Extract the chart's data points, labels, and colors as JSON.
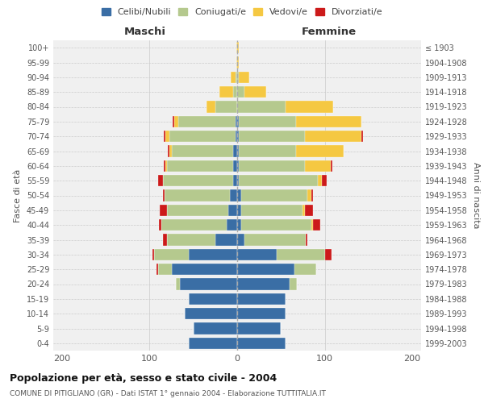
{
  "age_groups": [
    "0-4",
    "5-9",
    "10-14",
    "15-19",
    "20-24",
    "25-29",
    "30-34",
    "35-39",
    "40-44",
    "45-49",
    "50-54",
    "55-59",
    "60-64",
    "65-69",
    "70-74",
    "75-79",
    "80-84",
    "85-89",
    "90-94",
    "95-99",
    "100+"
  ],
  "birth_years": [
    "1999-2003",
    "1994-1998",
    "1989-1993",
    "1984-1988",
    "1979-1983",
    "1974-1978",
    "1969-1973",
    "1964-1968",
    "1959-1963",
    "1954-1958",
    "1949-1953",
    "1944-1948",
    "1939-1943",
    "1934-1938",
    "1929-1933",
    "1924-1928",
    "1919-1923",
    "1914-1918",
    "1909-1913",
    "1904-1908",
    "≤ 1903"
  ],
  "colors": {
    "celibi": "#3a6ea5",
    "coniugati": "#b5c98e",
    "vedovi": "#f5c842",
    "divorziati": "#cc1a1a"
  },
  "maschi": {
    "celibi": [
      55,
      50,
      60,
      55,
      65,
      75,
      55,
      25,
      12,
      10,
      8,
      5,
      5,
      5,
      2,
      2,
      0,
      0,
      0,
      0,
      0
    ],
    "coniugati": [
      0,
      0,
      0,
      0,
      5,
      15,
      40,
      55,
      75,
      70,
      75,
      80,
      75,
      70,
      75,
      65,
      25,
      5,
      2,
      0,
      0
    ],
    "vedovi": [
      0,
      0,
      0,
      0,
      0,
      0,
      0,
      0,
      0,
      0,
      0,
      0,
      2,
      2,
      5,
      5,
      10,
      15,
      5,
      1,
      1
    ],
    "divorziati": [
      0,
      0,
      0,
      0,
      0,
      2,
      2,
      5,
      2,
      8,
      2,
      5,
      2,
      2,
      2,
      2,
      0,
      0,
      0,
      0,
      0
    ]
  },
  "femmine": {
    "celibi": [
      55,
      50,
      55,
      55,
      60,
      65,
      45,
      8,
      5,
      5,
      5,
      2,
      2,
      2,
      2,
      2,
      0,
      0,
      0,
      0,
      0
    ],
    "coniugati": [
      0,
      0,
      0,
      0,
      8,
      25,
      55,
      70,
      80,
      70,
      75,
      90,
      75,
      65,
      75,
      65,
      55,
      8,
      2,
      0,
      0
    ],
    "vedovi": [
      0,
      0,
      0,
      0,
      0,
      0,
      0,
      0,
      2,
      2,
      5,
      5,
      30,
      55,
      65,
      75,
      55,
      25,
      12,
      2,
      2
    ],
    "divorziati": [
      0,
      0,
      0,
      0,
      0,
      0,
      8,
      2,
      8,
      10,
      2,
      5,
      2,
      0,
      2,
      0,
      0,
      0,
      0,
      0,
      0
    ]
  },
  "xlim": 210,
  "title": "Popolazione per età, sesso e stato civile - 2004",
  "subtitle": "COMUNE DI PITIGLIANO (GR) - Dati ISTAT 1° gennaio 2004 - Elaborazione TUTTITALIA.IT",
  "xlabel_left": "Maschi",
  "xlabel_right": "Femmine",
  "ylabel_left": "Fasce di età",
  "ylabel_right": "Anni di nascita",
  "legend_labels": [
    "Celibi/Nubili",
    "Coniugati/e",
    "Vedovi/e",
    "Divorziati/e"
  ],
  "bg_color": "#f5f5f5"
}
